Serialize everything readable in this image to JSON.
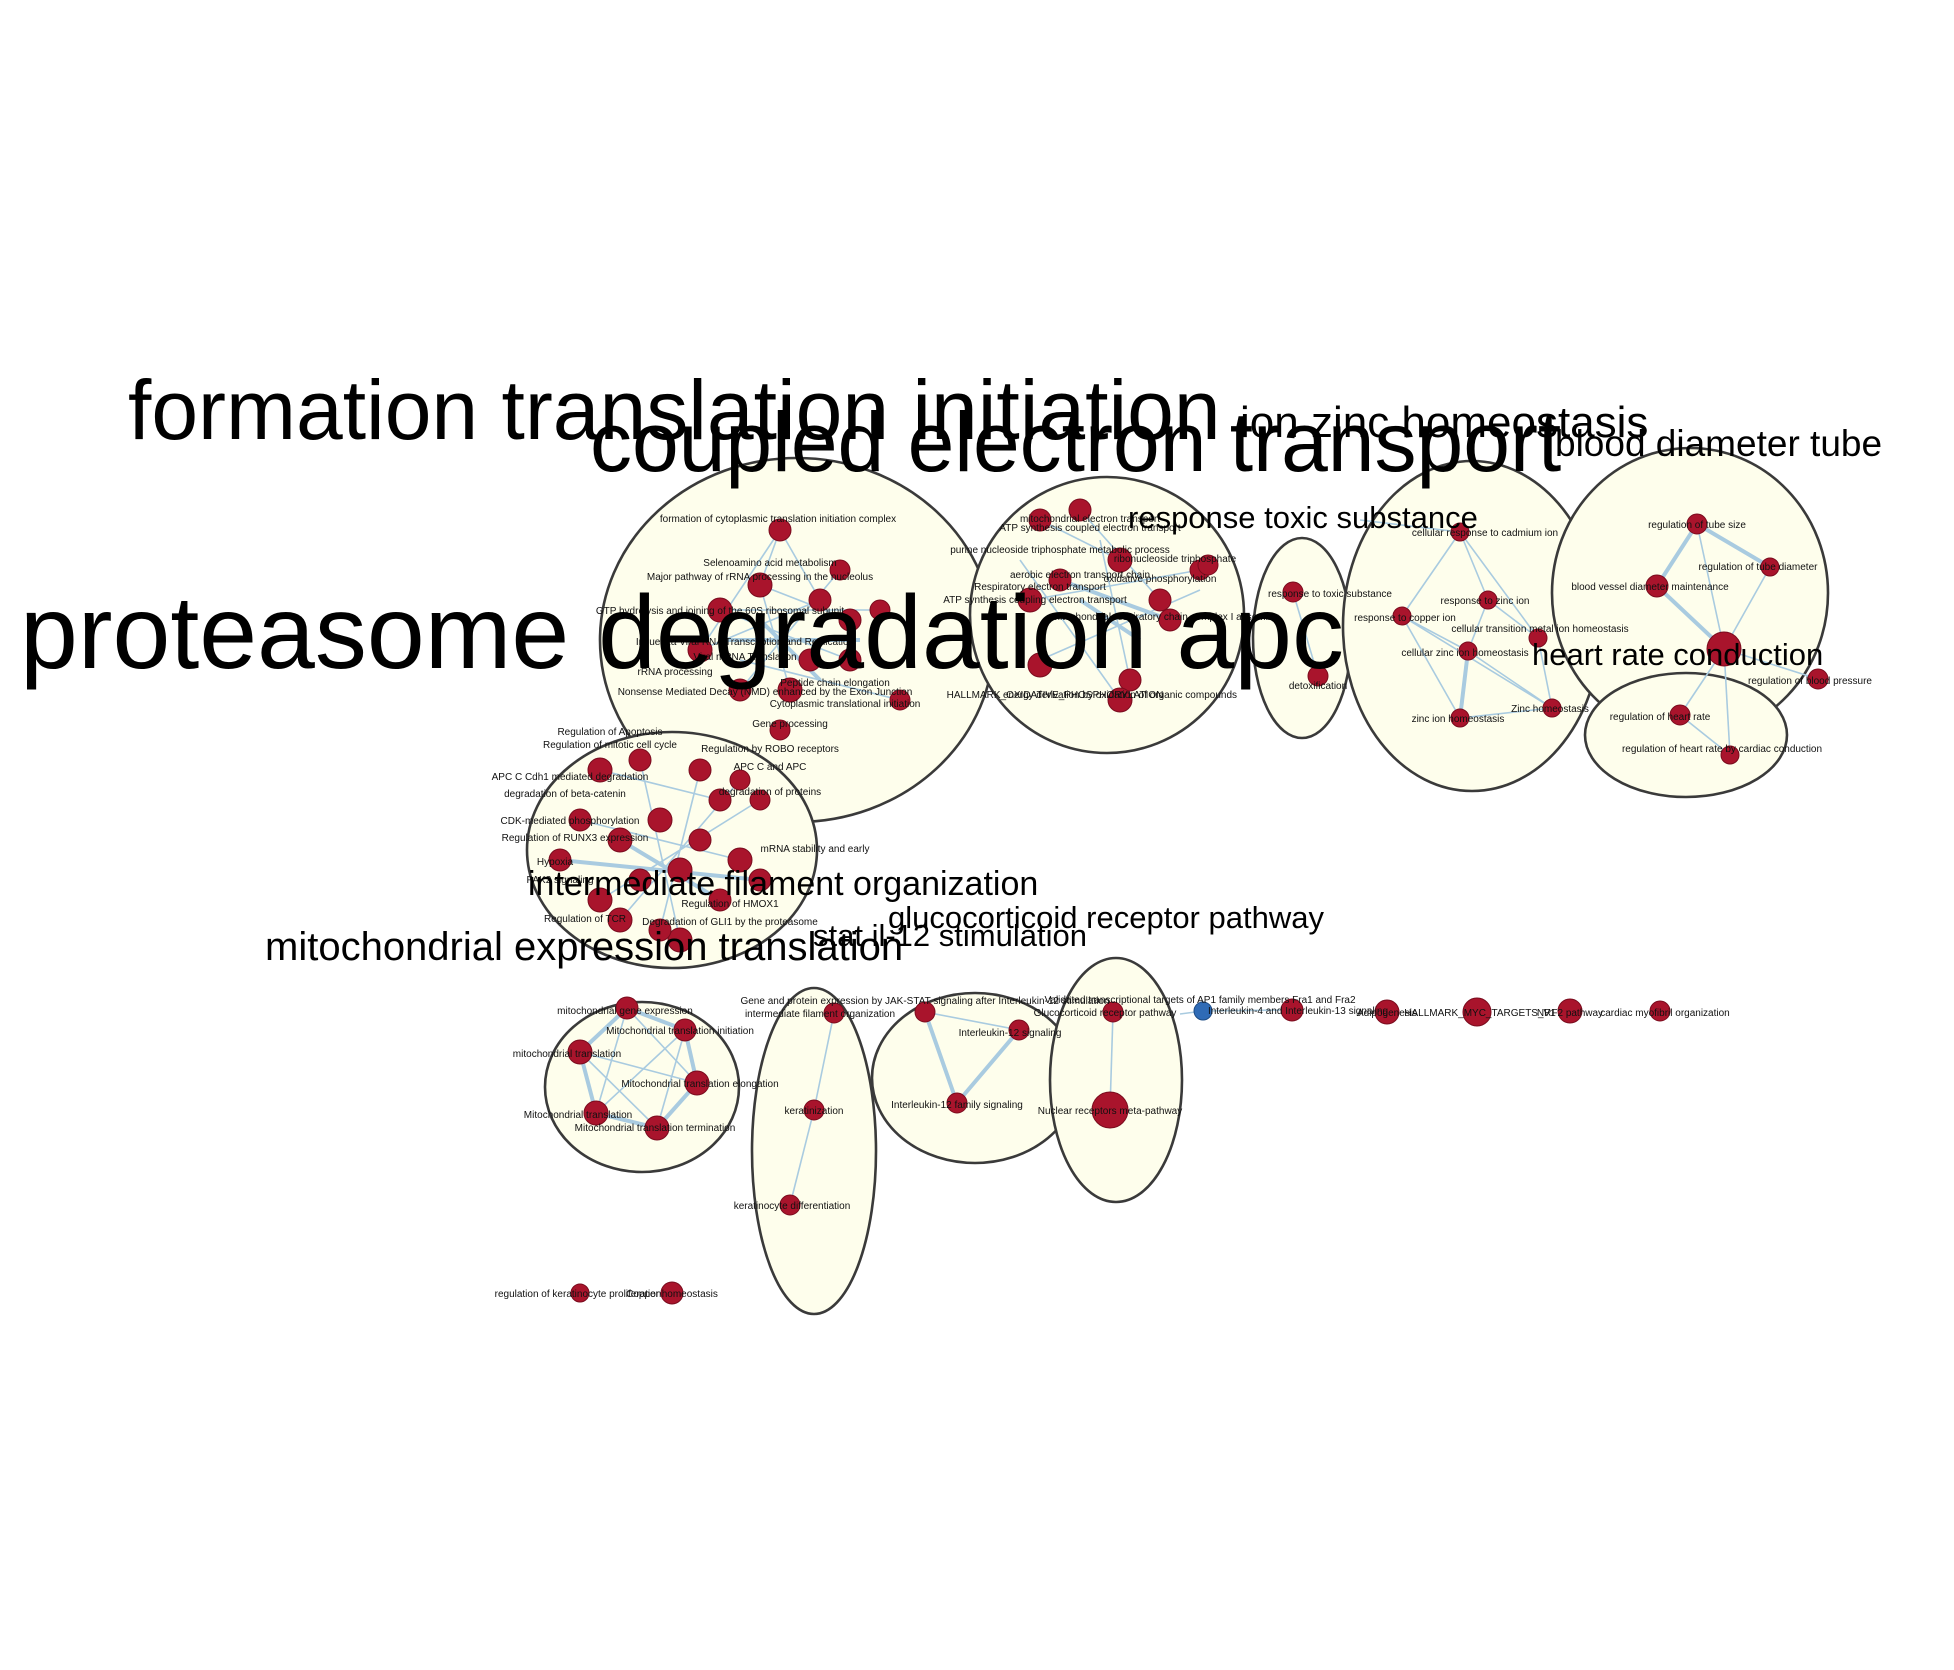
{
  "colors": {
    "node_red": "#a9142c",
    "node_blue": "#2f6bb6",
    "edge": "#a9cbe0",
    "cluster_fill": "#fefeec",
    "cluster_stroke": "#3a3a3a"
  },
  "clusters": [
    {
      "id": "translation",
      "label": "formation translation initiation"
    },
    {
      "id": "electron",
      "label": "coupled electron transport"
    },
    {
      "id": "proteasome",
      "label": "proteasome degradation apc"
    },
    {
      "id": "zinc",
      "label": "ion zinc homeostasis"
    },
    {
      "id": "tube",
      "label": "blood diameter tube"
    },
    {
      "id": "toxic",
      "label": "response toxic substance"
    },
    {
      "id": "heart",
      "label": "heart rate conduction"
    },
    {
      "id": "filament",
      "label": "intermediate filament organization"
    },
    {
      "id": "glucocorticoid",
      "label": "glucocorticoid receptor pathway"
    },
    {
      "id": "stat",
      "label": "stat il-12 stimulation"
    },
    {
      "id": "mito",
      "label": "mitochondrial expression translation"
    }
  ],
  "node_labels": {
    "translation": [
      "formation of cytoplasmic translation initiation complex",
      "Selenoamino acid metabolism",
      "Major pathway of rRNA processing in the nucleolus",
      "GTP hydrolysis and joining of the 60S ribosomal subunit",
      "Influenza Viral RNA Transcription and Replication",
      "Viral mRNA Translation",
      "rRNA processing",
      "Nonsense Mediated Decay (NMD) enhanced by the Exon Junction",
      "Peptide chain elongation",
      "Cytoplasmic translational initiation",
      "Gene processing"
    ],
    "electron": [
      "mitochondrial electron transport",
      "ATP synthesis coupled electron transport",
      "ribonucleoside triphosphate",
      "purine nucleoside triphosphate metabolic process",
      "aerobic electron transport chain",
      "Respiratory electron transport",
      "ATP synthesis coupling electron transport",
      "oxidative phosphorylation",
      "mitochondrial respiratory chain complex I assembly",
      "HALLMARK_OXIDATIVE_PHOSPHORYLATION",
      "energy derivation by oxidation of organic compounds"
    ],
    "proteasome": [
      "Regulation of Apoptosis",
      "Regulation of mitotic cell cycle",
      "APC C Cdh1 mediated degradation",
      "degradation of beta-catenin",
      "CDK-mediated phosphorylation",
      "Regulation of RUNX3 expression",
      "Hypoxia",
      "PAK2 signaling",
      "Regulation by ROBO receptors",
      "APC C and APC",
      "degradation of proteins",
      "Regulation of HMOX1",
      "Degradation of GLI1 by the proteasome",
      "Regulation of TCR",
      "mRNA stability and early"
    ],
    "zinc": [
      "response to zinc ion",
      "cellular response to cadmium ion",
      "response to copper ion",
      "cellular transition metal ion homeostasis",
      "cellular zinc ion homeostasis",
      "zinc ion homeostasis",
      "Zinc homeostasis"
    ],
    "toxic": [
      "response to toxic substance",
      "detoxification"
    ],
    "tube": [
      "regulation of tube size",
      "regulation of tube diameter",
      "blood vessel diameter maintenance",
      "regulation of blood pressure"
    ],
    "heart": [
      "regulation of heart rate",
      "regulation of heart rate by cardiac conduction"
    ],
    "mito": [
      "mitochondrial gene expression",
      "Mitochondrial translation initiation",
      "mitochondrial translation",
      "Mitochondrial translation elongation",
      "Mitochondrial translation",
      "Mitochondrial translation termination"
    ],
    "filament": [
      "intermediate filament organization",
      "keratinization",
      "keratinocyte differentiation"
    ],
    "stat": [
      "Gene and protein expression by JAK-STAT signaling after Interleukin-12 stimulation",
      "Interleukin-12 signaling",
      "Interleukin-12 family signaling"
    ],
    "glucocorticoid": [
      "Glucocorticoid receptor pathway",
      "Nuclear receptors meta-pathway"
    ],
    "singletons": [
      "Validated transcriptional targets of AP1 family members Fra1 and Fra2",
      "Interleukin-4 and Interleukin-13 signaling",
      "Adipogenesis",
      "HALLMARK_MYC_TARGETS_V1",
      "NRF2 pathway",
      "cardiac myofibril organization",
      "regulation of keratinocyte proliferation",
      "Copper homeostasis"
    ]
  }
}
